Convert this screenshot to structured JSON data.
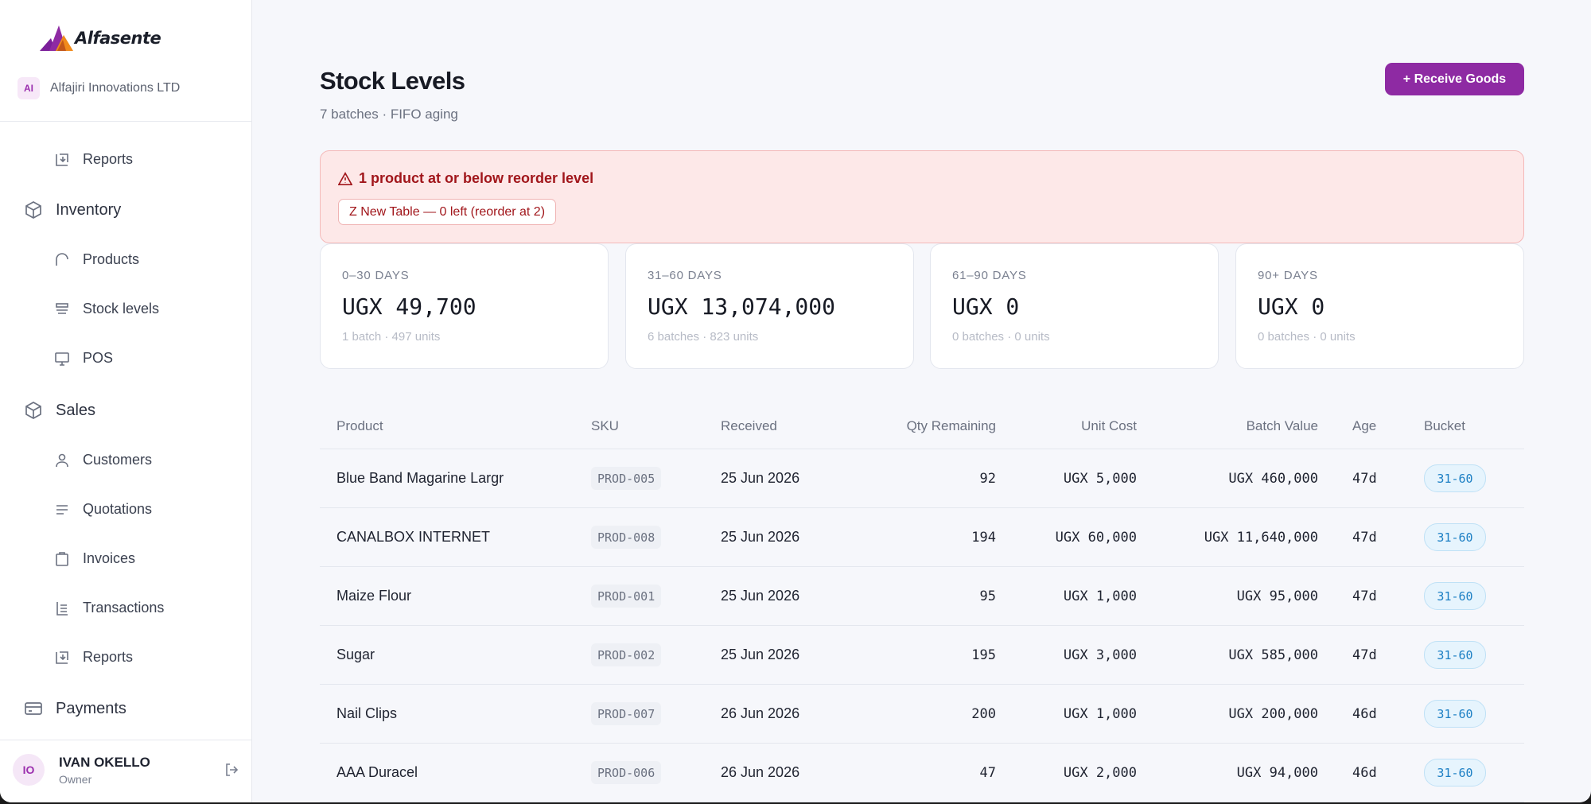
{
  "brand": {
    "name": "Alfasente"
  },
  "org": {
    "initials": "AI",
    "name": "Alfajiri Innovations LTD"
  },
  "nav": {
    "reports_top": "Reports",
    "inventory": "Inventory",
    "products": "Products",
    "stock_levels": "Stock levels",
    "pos": "POS",
    "sales": "Sales",
    "customers": "Customers",
    "quotations": "Quotations",
    "invoices": "Invoices",
    "transactions": "Transactions",
    "reports": "Reports",
    "payments": "Payments"
  },
  "user": {
    "initials": "IO",
    "name": "IVAN OKELLO",
    "role": "Owner"
  },
  "page": {
    "title": "Stock Levels",
    "subtitle": "7 batches · FIFO aging",
    "receive_button": "+ Receive Goods"
  },
  "alert": {
    "title": "1 product at or below reorder level",
    "item": "Z New Table — 0 left (reorder at 2)"
  },
  "cards": [
    {
      "label": "0–30 DAYS",
      "value": "UGX 49,700",
      "meta": "1 batch · 497 units"
    },
    {
      "label": "31–60 DAYS",
      "value": "UGX 13,074,000",
      "meta": "6 batches · 823 units"
    },
    {
      "label": "61–90 DAYS",
      "value": "UGX 0",
      "meta": "0 batches · 0 units"
    },
    {
      "label": "90+ DAYS",
      "value": "UGX 0",
      "meta": "0 batches · 0 units"
    }
  ],
  "table": {
    "headers": {
      "product": "Product",
      "sku": "SKU",
      "received": "Received",
      "qty": "Qty Remaining",
      "unit_cost": "Unit Cost",
      "batch_value": "Batch Value",
      "age": "Age",
      "bucket": "Bucket"
    },
    "rows": [
      {
        "product": "Blue Band Magarine Largr",
        "sku": "PROD-005",
        "received": "25 Jun 2026",
        "qty": "92",
        "unit_cost": "UGX 5,000",
        "batch_value": "UGX 460,000",
        "age": "47d",
        "bucket": "31-60"
      },
      {
        "product": "CANALBOX INTERNET",
        "sku": "PROD-008",
        "received": "25 Jun 2026",
        "qty": "194",
        "unit_cost": "UGX 60,000",
        "batch_value": "UGX 11,640,000",
        "age": "47d",
        "bucket": "31-60"
      },
      {
        "product": "Maize Flour",
        "sku": "PROD-001",
        "received": "25 Jun 2026",
        "qty": "95",
        "unit_cost": "UGX 1,000",
        "batch_value": "UGX 95,000",
        "age": "47d",
        "bucket": "31-60"
      },
      {
        "product": "Sugar",
        "sku": "PROD-002",
        "received": "25 Jun 2026",
        "qty": "195",
        "unit_cost": "UGX 3,000",
        "batch_value": "UGX 585,000",
        "age": "47d",
        "bucket": "31-60"
      },
      {
        "product": "Nail Clips",
        "sku": "PROD-007",
        "received": "26 Jun 2026",
        "qty": "200",
        "unit_cost": "UGX 1,000",
        "batch_value": "UGX 200,000",
        "age": "46d",
        "bucket": "31-60"
      },
      {
        "product": "AAA Duracel",
        "sku": "PROD-006",
        "received": "26 Jun 2026",
        "qty": "47",
        "unit_cost": "UGX 2,000",
        "batch_value": "UGX 94,000",
        "age": "46d",
        "bucket": "31-60"
      }
    ]
  },
  "colors": {
    "primary": "#8e2aa3",
    "alert_bg": "#fde8e8",
    "alert_text": "#a1161b",
    "bucket_text": "#1c7fc4"
  }
}
